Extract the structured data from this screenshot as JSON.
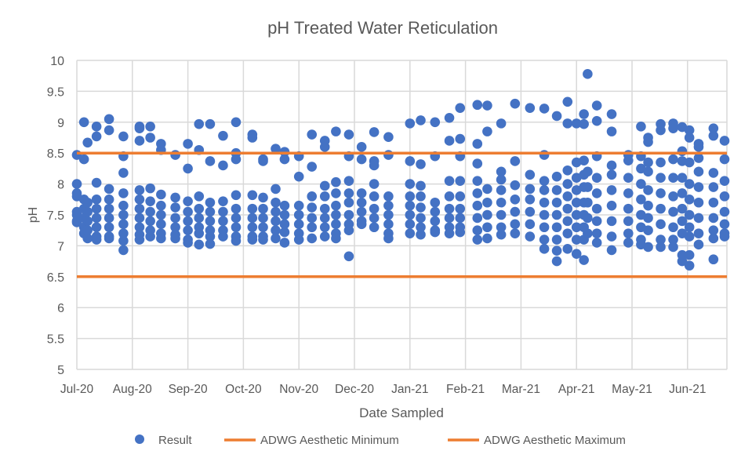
{
  "chart_data": {
    "type": "scatter",
    "title": "pH Treated Water Reticulation",
    "xlabel": "Date Sampled",
    "ylabel": "pH",
    "ylim": [
      5,
      10
    ],
    "yticks": [
      5,
      5.5,
      6,
      6.5,
      7,
      7.5,
      8,
      8.5,
      9,
      9.5,
      10
    ],
    "ytick_labels": [
      "5",
      "5.5",
      "6",
      "6.5",
      "7",
      "7.5",
      "8",
      "8.5",
      "9",
      "9.5",
      "10"
    ],
    "xlim": [
      "2020-07-01",
      "2021-06-22"
    ],
    "xticks": [
      "2020-07-01",
      "2020-08-01",
      "2020-09-01",
      "2020-10-01",
      "2020-11-01",
      "2020-12-01",
      "2021-01-01",
      "2021-02-01",
      "2021-03-01",
      "2021-04-01",
      "2021-05-01",
      "2021-06-01"
    ],
    "xtick_labels": [
      "Jul-20",
      "Aug-20",
      "Sep-20",
      "Oct-20",
      "Nov-20",
      "Dec-20",
      "Jan-21",
      "Feb-21",
      "Mar-21",
      "Apr-21",
      "May-21",
      "Jun-21"
    ],
    "grid": true,
    "legend_position": "bottom",
    "colors": {
      "result": "#4472C4",
      "minimum": "#ED7D31",
      "maximum": "#ED7D31",
      "grid": "#D9D9D9"
    },
    "reference_lines": [
      {
        "name": "ADWG Aesthetic Minimum",
        "y": 6.5
      },
      {
        "name": "ADWG Aesthetic Maximum",
        "y": 8.5
      }
    ],
    "series": [
      {
        "name": "Result",
        "points": [
          {
            "d": "2020-07-01",
            "v": [
              8.47,
              8.0,
              7.85,
              7.8,
              7.55,
              7.5,
              7.4,
              7.38
            ]
          },
          {
            "d": "2020-07-05",
            "v": [
              9.0,
              8.4,
              7.75,
              7.6,
              7.45,
              7.3,
              7.2
            ]
          },
          {
            "d": "2020-07-07",
            "v": [
              8.67,
              7.7,
              7.55,
              7.4,
              7.25,
              7.12
            ]
          },
          {
            "d": "2020-07-12",
            "v": [
              8.93,
              8.77,
              8.02,
              7.75,
              7.6,
              7.45,
              7.3,
              7.15,
              7.1
            ]
          },
          {
            "d": "2020-07-19",
            "v": [
              9.05,
              8.87,
              7.92,
              7.75,
              7.6,
              7.45,
              7.3,
              7.15,
              7.12
            ]
          },
          {
            "d": "2020-07-27",
            "v": [
              8.77,
              8.45,
              8.18,
              7.85,
              7.65,
              7.5,
              7.35,
              7.2,
              7.08,
              6.93
            ]
          },
          {
            "d": "2020-08-05",
            "v": [
              8.93,
              8.9,
              8.7,
              7.9,
              7.75,
              7.6,
              7.45,
              7.3,
              7.18,
              7.1
            ]
          },
          {
            "d": "2020-08-11",
            "v": [
              8.93,
              8.75,
              7.93,
              7.72,
              7.55,
              7.4,
              7.25,
              7.15
            ]
          },
          {
            "d": "2020-08-17",
            "v": [
              8.65,
              8.55,
              7.83,
              7.65,
              7.5,
              7.35,
              7.2,
              7.12
            ]
          },
          {
            "d": "2020-08-25",
            "v": [
              8.47,
              7.78,
              7.62,
              7.45,
              7.3,
              7.18,
              7.12
            ]
          },
          {
            "d": "2020-09-01",
            "v": [
              8.65,
              8.25,
              7.72,
              7.55,
              7.4,
              7.25,
              7.1,
              7.05
            ]
          },
          {
            "d": "2020-09-07",
            "v": [
              8.97,
              8.55,
              7.8,
              7.6,
              7.45,
              7.3,
              7.2,
              7.02
            ]
          },
          {
            "d": "2020-09-13",
            "v": [
              8.97,
              8.37,
              7.7,
              7.55,
              7.4,
              7.25,
              7.15,
              7.03
            ]
          },
          {
            "d": "2020-09-20",
            "v": [
              8.78,
              8.3,
              7.72,
              7.55,
              7.4,
              7.25,
              7.15
            ]
          },
          {
            "d": "2020-09-27",
            "v": [
              9.0,
              8.5,
              8.4,
              7.82,
              7.6,
              7.45,
              7.3,
              7.15,
              7.08
            ]
          },
          {
            "d": "2020-10-06",
            "v": [
              8.8,
              8.75,
              7.82,
              7.6,
              7.45,
              7.3,
              7.15,
              7.1
            ]
          },
          {
            "d": "2020-10-12",
            "v": [
              8.4,
              8.37,
              7.78,
              7.6,
              7.45,
              7.3,
              7.15,
              7.1
            ]
          },
          {
            "d": "2020-10-19",
            "v": [
              8.57,
              7.92,
              7.7,
              7.55,
              7.4,
              7.25,
              7.12
            ]
          },
          {
            "d": "2020-10-24",
            "v": [
              8.52,
              8.4,
              7.65,
              7.5,
              7.35,
              7.22,
              7.05
            ]
          },
          {
            "d": "2020-11-01",
            "v": [
              8.45,
              8.12,
              7.65,
              7.5,
              7.35,
              7.2,
              7.1
            ]
          },
          {
            "d": "2020-11-08",
            "v": [
              8.8,
              8.28,
              7.8,
              7.62,
              7.45,
              7.3,
              7.12
            ]
          },
          {
            "d": "2020-11-15",
            "v": [
              8.7,
              8.6,
              7.97,
              7.8,
              7.6,
              7.45,
              7.3,
              7.15
            ]
          },
          {
            "d": "2020-11-21",
            "v": [
              8.85,
              8.03,
              7.85,
              7.65,
              7.5,
              7.35,
              7.2,
              7.12
            ]
          },
          {
            "d": "2020-11-28",
            "v": [
              8.8,
              8.45,
              8.05,
              7.85,
              7.7,
              7.5,
              7.35,
              7.25,
              6.83
            ]
          },
          {
            "d": "2020-12-05",
            "v": [
              8.6,
              8.4,
              7.85,
              7.7,
              7.55,
              7.4,
              7.35
            ]
          },
          {
            "d": "2020-12-12",
            "v": [
              8.84,
              8.37,
              8.3,
              8.0,
              7.8,
              7.6,
              7.45,
              7.3
            ]
          },
          {
            "d": "2020-12-20",
            "v": [
              8.76,
              8.47,
              7.8,
              7.65,
              7.5,
              7.35,
              7.2,
              7.12
            ]
          },
          {
            "d": "2021-01-01",
            "v": [
              8.98,
              8.37,
              8.0,
              7.8,
              7.65,
              7.5,
              7.35,
              7.2
            ]
          },
          {
            "d": "2021-01-07",
            "v": [
              9.03,
              8.32,
              7.97,
              7.8,
              7.62,
              7.45,
              7.3,
              7.18
            ]
          },
          {
            "d": "2021-01-15",
            "v": [
              9.0,
              8.45,
              7.7,
              7.55,
              7.4,
              7.25,
              7.22
            ]
          },
          {
            "d": "2021-01-23",
            "v": [
              9.07,
              8.7,
              8.05,
              7.8,
              7.6,
              7.45,
              7.3,
              7.2
            ]
          },
          {
            "d": "2021-01-29",
            "v": [
              9.23,
              8.73,
              8.45,
              8.05,
              7.8,
              7.6,
              7.45,
              7.3,
              7.22
            ]
          },
          {
            "d": "2021-02-07",
            "v": [
              9.28,
              8.65,
              8.33,
              8.05,
              7.85,
              7.65,
              7.45,
              7.25,
              7.1
            ]
          },
          {
            "d": "2021-02-12",
            "v": [
              9.27,
              8.85,
              7.92,
              7.7,
              7.5,
              7.3,
              7.12
            ]
          },
          {
            "d": "2021-02-19",
            "v": [
              8.98,
              8.2,
              8.07,
              7.9,
              7.7,
              7.5,
              7.3,
              7.18
            ]
          },
          {
            "d": "2021-02-26",
            "v": [
              9.3,
              8.37,
              7.98,
              7.75,
              7.55,
              7.35,
              7.2
            ]
          },
          {
            "d": "2021-03-06",
            "v": [
              9.23,
              8.15,
              7.92,
              7.75,
              7.55,
              7.35,
              7.15
            ]
          },
          {
            "d": "2021-03-14",
            "v": [
              9.22,
              8.47,
              8.05,
              7.9,
              7.7,
              7.5,
              7.3,
              7.1,
              6.95
            ]
          },
          {
            "d": "2021-03-21",
            "v": [
              9.1,
              8.12,
              7.9,
              7.7,
              7.5,
              7.3,
              7.1,
              6.92,
              6.75
            ]
          },
          {
            "d": "2021-03-27",
            "v": [
              9.33,
              8.98,
              8.22,
              8.0,
              7.8,
              7.6,
              7.4,
              7.2,
              6.95
            ]
          },
          {
            "d": "2021-04-01",
            "v": [
              8.98,
              8.35,
              8.1,
              7.9,
              7.7,
              7.5,
              7.3,
              7.1,
              6.87
            ]
          },
          {
            "d": "2021-04-05",
            "v": [
              9.13,
              8.97,
              8.38,
              8.15,
              7.95,
              7.7,
              7.5,
              7.3,
              7.1,
              6.77
            ]
          },
          {
            "d": "2021-04-07",
            "v": [
              9.78,
              8.2,
              7.95,
              7.7,
              7.45,
              7.2
            ]
          },
          {
            "d": "2021-04-12",
            "v": [
              9.27,
              9.02,
              8.45,
              8.1,
              7.85,
              7.6,
              7.4,
              7.2,
              7.05
            ]
          },
          {
            "d": "2021-04-20",
            "v": [
              9.13,
              8.85,
              8.3,
              8.15,
              7.9,
              7.65,
              7.4,
              7.15,
              6.93
            ]
          },
          {
            "d": "2021-04-29",
            "v": [
              8.47,
              8.38,
              8.1,
              7.85,
              7.6,
              7.4,
              7.2,
              7.05
            ]
          },
          {
            "d": "2021-05-06",
            "v": [
              8.93,
              8.45,
              8.25,
              8.0,
              7.75,
              7.5,
              7.3,
              7.1,
              7.02
            ]
          },
          {
            "d": "2021-05-10",
            "v": [
              8.75,
              8.68,
              8.35,
              8.2,
              7.9,
              7.65,
              7.45,
              7.25,
              6.98
            ]
          },
          {
            "d": "2021-05-17",
            "v": [
              8.97,
              8.87,
              8.35,
              8.1,
              7.85,
              7.6,
              7.35,
              7.1,
              6.98
            ]
          },
          {
            "d": "2021-05-24",
            "v": [
              8.98,
              8.9,
              8.4,
              8.1,
              7.8,
              7.55,
              7.3,
              7.1,
              6.98
            ]
          },
          {
            "d": "2021-05-29",
            "v": [
              8.92,
              8.53,
              8.37,
              8.1,
              7.85,
              7.6,
              7.4,
              7.2,
              6.85,
              6.75
            ]
          },
          {
            "d": "2021-06-02",
            "v": [
              8.87,
              8.75,
              8.35,
              8.0,
              7.75,
              7.5,
              7.3,
              7.15,
              6.85,
              6.68
            ]
          },
          {
            "d": "2021-06-07",
            "v": [
              8.65,
              8.6,
              8.42,
              8.2,
              7.95,
              7.7,
              7.45,
              7.2,
              7.02
            ]
          },
          {
            "d": "2021-06-15",
            "v": [
              8.78,
              8.9,
              8.18,
              7.95,
              7.7,
              7.45,
              7.25,
              7.12,
              6.78
            ]
          },
          {
            "d": "2021-06-21",
            "v": [
              8.7,
              8.4,
              8.05,
              7.8,
              7.55,
              7.35,
              7.2,
              7.15
            ]
          }
        ]
      }
    ]
  },
  "legend": {
    "items": [
      {
        "label": "Result",
        "icon": "circle-marker"
      },
      {
        "label": "ADWG Aesthetic Minimum",
        "icon": "line-marker"
      },
      {
        "label": "ADWG Aesthetic Maximum",
        "icon": "line-marker"
      }
    ]
  }
}
